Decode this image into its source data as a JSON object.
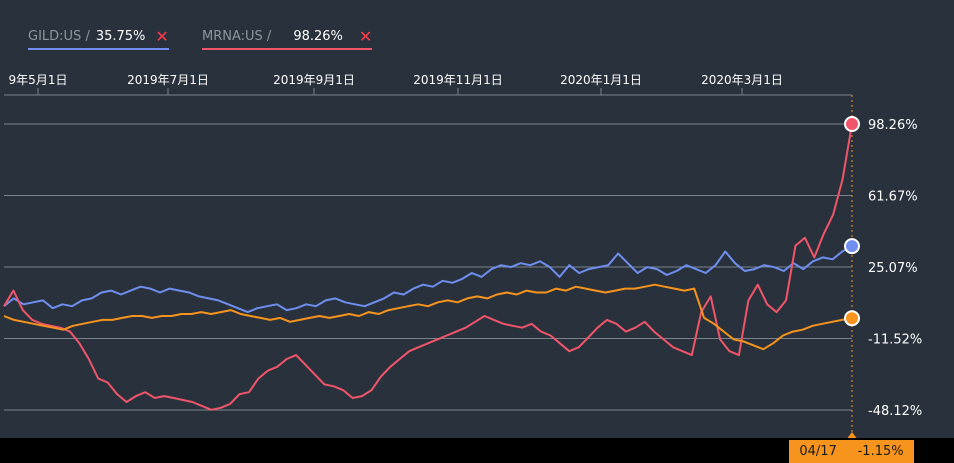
{
  "legend": [
    {
      "symbol": "GILD:US /",
      "value": "35.75%",
      "color": "#6f8ff0",
      "remove": "✕"
    },
    {
      "symbol": "MRNA:US /",
      "value": "98.26%",
      "color": "#f0556a",
      "remove": "✕"
    }
  ],
  "footer": {
    "date": "04/17",
    "value": "-1.15%"
  },
  "chart_data": {
    "type": "line",
    "x_ticks": [
      "9年5月1日",
      "2019年7月1日",
      "2019年9月1日",
      "2019年11月1日",
      "2020年1月1日",
      "2020年3月1日"
    ],
    "y_ticks": [
      "98.26%",
      "61.67%",
      "25.07%",
      "-11.52%",
      "-48.12%"
    ],
    "y_tick_values": [
      98.26,
      61.67,
      25.07,
      -11.52,
      -48.12
    ],
    "ylim": [
      -55,
      110
    ],
    "grid": true,
    "series": [
      {
        "name": "GILD:US",
        "color": "#6f8ff0",
        "end_value": 35.75,
        "values": [
          5,
          9,
          6,
          7,
          8,
          4,
          6,
          5,
          8,
          9,
          12,
          13,
          11,
          13,
          15,
          14,
          12,
          14,
          13,
          12,
          10,
          9,
          8,
          6,
          4,
          2,
          4,
          5,
          6,
          3,
          4,
          6,
          5,
          8,
          9,
          7,
          6,
          5,
          7,
          9,
          12,
          11,
          14,
          16,
          15,
          18,
          17,
          19,
          22,
          20,
          24,
          26,
          25,
          27,
          26,
          28,
          25,
          20,
          26,
          22,
          24,
          25,
          26,
          32,
          27,
          22,
          25,
          24,
          21,
          23,
          26,
          24,
          22,
          26,
          33,
          27,
          23,
          24,
          26,
          25,
          23,
          27,
          24,
          28,
          30,
          29,
          33,
          35.75
        ]
      },
      {
        "name": "MRNA:US",
        "color": "#f0556a",
        "end_value": 98.26,
        "values": [
          5,
          13,
          3,
          -2,
          -4,
          -5,
          -6,
          -8,
          -14,
          -22,
          -32,
          -34,
          -40,
          -44,
          -41,
          -39,
          -42,
          -41,
          -42,
          -43,
          -44,
          -46,
          -48,
          -47,
          -45,
          -40,
          -39,
          -32,
          -28,
          -26,
          -22,
          -20,
          -25,
          -30,
          -35,
          -36,
          -38,
          -42,
          -41,
          -38,
          -31,
          -26,
          -22,
          -18,
          -16,
          -14,
          -12,
          -10,
          -8,
          -6,
          -3,
          0,
          -2,
          -4,
          -5,
          -6,
          -4,
          -8,
          -10,
          -14,
          -18,
          -16,
          -11,
          -6,
          -2,
          -4,
          -8,
          -6,
          -3,
          -8,
          -12,
          -16,
          -18,
          -20,
          2,
          10,
          -12,
          -18,
          -20,
          8,
          16,
          6,
          2,
          8,
          36,
          40,
          30,
          42,
          52,
          70,
          98.26
        ]
      },
      {
        "name": "",
        "color": "#f7941d",
        "end_value": -1.15,
        "values": [
          0,
          -2,
          -3,
          -4,
          -5,
          -6,
          -7,
          -5,
          -4,
          -3,
          -2,
          -2,
          -1,
          0,
          0,
          -1,
          0,
          0,
          1,
          1,
          2,
          1,
          2,
          3,
          1,
          0,
          -1,
          -2,
          -1,
          -3,
          -2,
          -1,
          0,
          -1,
          0,
          1,
          0,
          2,
          1,
          3,
          4,
          5,
          6,
          5,
          7,
          8,
          7,
          9,
          10,
          9,
          11,
          12,
          11,
          13,
          12,
          12,
          14,
          13,
          15,
          14,
          13,
          12,
          13,
          14,
          14,
          15,
          16,
          15,
          14,
          13,
          14,
          -1,
          -4,
          -8,
          -12,
          -13,
          -15,
          -17,
          -14,
          -10,
          -8,
          -7,
          -5,
          -4,
          -3,
          -2,
          -1.15
        ]
      }
    ]
  }
}
